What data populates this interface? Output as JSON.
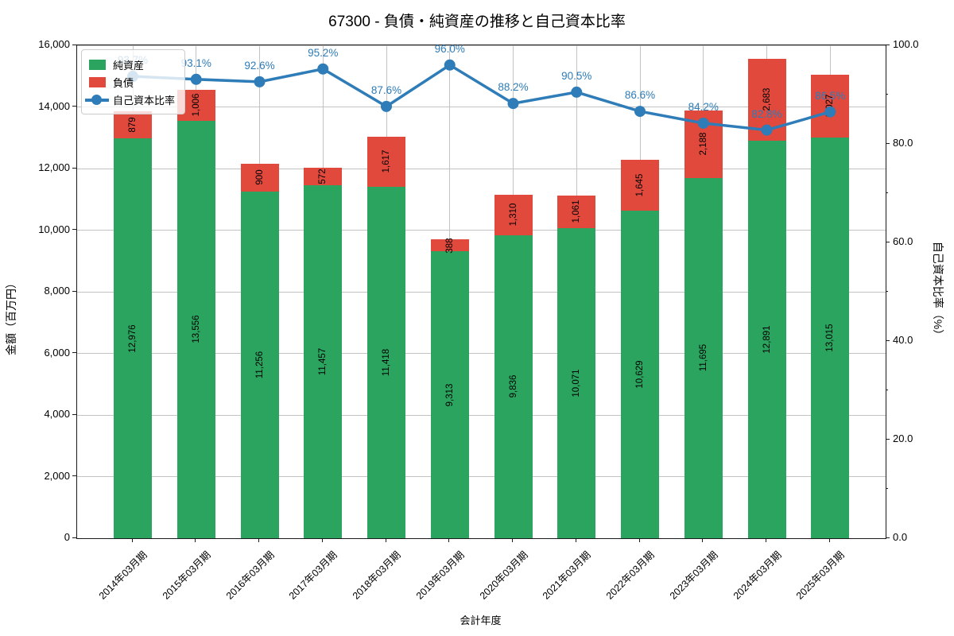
{
  "title": "67300 - 負債・純資産の推移と自己資本比率",
  "chart_data": {
    "type": "bar",
    "stacked": true,
    "categories": [
      "2014年03月期",
      "2015年03月期",
      "2016年03月期",
      "2017年03月期",
      "2018年03月期",
      "2019年03月期",
      "2020年03月期",
      "2021年03月期",
      "2022年03月期",
      "2023年03月期",
      "2024年03月期",
      "2025年03月期"
    ],
    "series": [
      {
        "name": "純資産",
        "color": "#2aa45e",
        "values": [
          12976,
          13556,
          11256,
          11457,
          11418,
          9313,
          9836,
          10071,
          10629,
          11695,
          12891,
          13015
        ]
      },
      {
        "name": "負債",
        "color": "#e0493c",
        "values": [
          879,
          1006,
          900,
          572,
          1617,
          388,
          1310,
          1061,
          1645,
          2188,
          2683,
          2027
        ]
      }
    ],
    "line_series": {
      "name": "自己資本比率",
      "color": "#2e7cb8",
      "values": [
        93.7,
        93.1,
        92.6,
        95.2,
        87.6,
        96.0,
        88.2,
        90.5,
        86.6,
        84.2,
        82.8,
        86.5
      ],
      "labels": [
        "93.7%",
        "93.1%",
        "92.6%",
        "95.2%",
        "87.6%",
        "96.0%",
        "88.2%",
        "90.5%",
        "86.6%",
        "84.2%",
        "82.8%",
        "86.5%"
      ]
    },
    "xlabel": "会計年度",
    "ylabel_left": "金額（百万円）",
    "ylabel_right": "自己資本比率（%）",
    "ylim_left": [
      0,
      16000
    ],
    "ylim_right": [
      0,
      100
    ],
    "yticks_left": [
      "0",
      "2,000",
      "4,000",
      "6,000",
      "8,000",
      "10,000",
      "12,000",
      "14,000",
      "16,000"
    ],
    "yticks_right": [
      "0.0",
      "20.0",
      "40.0",
      "60.0",
      "80.0",
      "100.0"
    ],
    "grid": true,
    "legend_position": "upper-left",
    "grid_color": "#c3c3c3",
    "bar_label_color": "#000000"
  }
}
